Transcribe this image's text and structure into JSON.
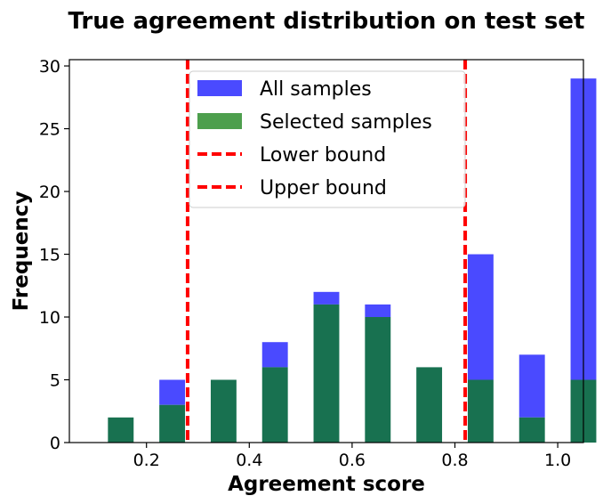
{
  "chart_data": {
    "type": "bar",
    "title": "True agreement distribution on test set",
    "xlabel": "Agreement score",
    "ylabel": "Frequency",
    "xlim": [
      0.05,
      1.05
    ],
    "ylim": [
      0,
      30.5
    ],
    "x_ticks": [
      0.2,
      0.4,
      0.6,
      0.8,
      1.0
    ],
    "x_tick_labels": [
      "0.2",
      "0.4",
      "0.6",
      "0.8",
      "1.0"
    ],
    "y_ticks": [
      0,
      5,
      10,
      15,
      20,
      25,
      30
    ],
    "y_tick_labels": [
      "0",
      "5",
      "10",
      "15",
      "20",
      "25",
      "30"
    ],
    "bin_width": 0.05,
    "grid": false,
    "legend_position": "upper-center",
    "series": [
      {
        "name": "All samples",
        "color": "#4a4aff",
        "x": [
          0.125,
          0.225,
          0.325,
          0.425,
          0.525,
          0.625,
          0.725,
          0.825,
          0.925,
          1.025
        ],
        "values": [
          2,
          5,
          5,
          8,
          12,
          11,
          6,
          15,
          7,
          29
        ]
      },
      {
        "name": "Selected samples",
        "color": "#4d9f4d",
        "x": [
          0.125,
          0.225,
          0.325,
          0.425,
          0.525,
          0.625,
          0.725,
          0.825,
          0.925,
          1.025
        ],
        "values": [
          2,
          3,
          5,
          6,
          11,
          10,
          6,
          5,
          2,
          5
        ]
      }
    ],
    "overlap_color": "#187150",
    "reference_lines": [
      {
        "name": "Lower bound",
        "x": 0.28,
        "color": "#ff0000",
        "style": "dashed"
      },
      {
        "name": "Upper bound",
        "x": 0.82,
        "color": "#ff0000",
        "style": "dashed"
      }
    ]
  }
}
